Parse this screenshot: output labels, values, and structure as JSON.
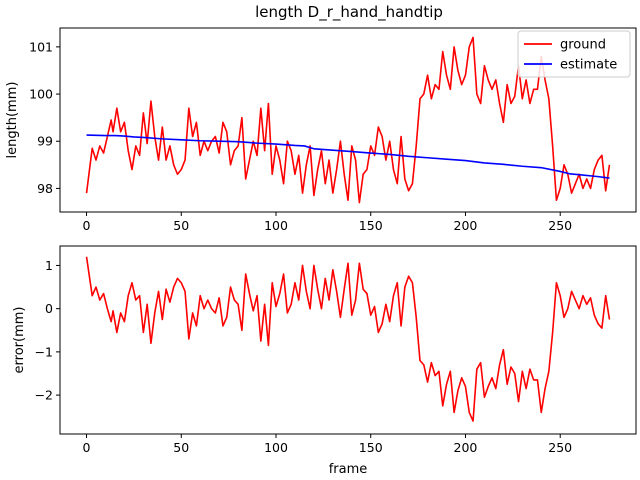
{
  "chart_data": [
    {
      "type": "line",
      "title": "length D_r_hand_handtip",
      "xlabel": "",
      "ylabel": "length(mm)",
      "xlim": [
        -14,
        290
      ],
      "ylim": [
        97.5,
        101.4
      ],
      "xticks": [
        0,
        50,
        100,
        150,
        200,
        250
      ],
      "yticks": [
        98,
        99,
        100,
        101
      ],
      "grid": false,
      "legend": "top-right",
      "series": [
        {
          "name": "ground",
          "color": "#ff0000",
          "x": [
            0,
            3,
            5,
            7,
            9,
            11,
            13,
            14,
            16,
            18,
            20,
            22,
            24,
            26,
            28,
            30,
            32,
            34,
            36,
            38,
            40,
            42,
            44,
            46,
            48,
            50,
            52,
            54,
            56,
            58,
            60,
            62,
            64,
            66,
            68,
            70,
            72,
            74,
            76,
            78,
            80,
            82,
            84,
            86,
            88,
            90,
            92,
            94,
            96,
            98,
            100,
            102,
            104,
            106,
            108,
            110,
            112,
            114,
            116,
            118,
            120,
            122,
            124,
            126,
            128,
            130,
            132,
            134,
            136,
            138,
            140,
            142,
            144,
            146,
            148,
            150,
            152,
            154,
            156,
            158,
            160,
            162,
            164,
            166,
            168,
            170,
            172,
            174,
            176,
            178,
            180,
            182,
            184,
            186,
            188,
            190,
            192,
            194,
            196,
            198,
            200,
            202,
            204,
            206,
            208,
            210,
            212,
            214,
            216,
            218,
            220,
            222,
            224,
            226,
            228,
            230,
            232,
            234,
            236,
            238,
            240,
            242,
            244,
            246,
            248,
            250,
            252,
            254,
            256,
            258,
            260,
            262,
            264,
            266,
            268,
            270,
            272,
            274,
            276
          ],
          "y": [
            97.9,
            98.85,
            98.6,
            98.9,
            98.75,
            99.1,
            99.45,
            99.2,
            99.7,
            99.2,
            99.4,
            98.8,
            98.4,
            98.9,
            98.7,
            99.6,
            98.95,
            99.85,
            99.1,
            98.6,
            99.3,
            98.6,
            98.9,
            98.5,
            98.3,
            98.4,
            98.6,
            99.7,
            99.1,
            99.4,
            98.7,
            99.0,
            98.8,
            99.0,
            99.1,
            98.75,
            99.4,
            99.2,
            98.5,
            98.8,
            98.9,
            99.5,
            98.2,
            98.6,
            99.0,
            98.7,
            99.7,
            98.8,
            99.8,
            98.3,
            98.9,
            98.6,
            98.1,
            99.0,
            98.8,
            98.3,
            98.7,
            97.9,
            98.5,
            98.9,
            97.85,
            98.4,
            98.8,
            98.1,
            98.6,
            97.9,
            98.4,
            99.0,
            98.3,
            97.75,
            98.9,
            98.6,
            97.7,
            98.3,
            98.4,
            98.9,
            98.7,
            99.3,
            99.1,
            98.6,
            99.0,
            98.4,
            98.1,
            99.1,
            98.2,
            97.95,
            98.1,
            98.9,
            99.9,
            100.0,
            100.4,
            99.9,
            100.2,
            100.1,
            100.9,
            100.4,
            100.1,
            101.0,
            100.5,
            100.2,
            100.4,
            101.0,
            101.2,
            100.0,
            99.8,
            100.6,
            100.3,
            100.1,
            100.3,
            99.8,
            99.4,
            100.2,
            99.8,
            99.95,
            100.6,
            99.9,
            100.3,
            99.8,
            100.1,
            100.1,
            100.8,
            100.3,
            99.9,
            98.9,
            97.75,
            98.0,
            98.5,
            98.3,
            97.9,
            98.1,
            98.3,
            98.0,
            98.2,
            98.0,
            98.4,
            98.6,
            98.7,
            97.95,
            98.5
          ],
          "x_start": 0
        },
        {
          "name": "estimate",
          "color": "#0000ff",
          "x": [
            0,
            10,
            15,
            20,
            25,
            30,
            40,
            50,
            60,
            70,
            80,
            90,
            100,
            110,
            115,
            120,
            130,
            140,
            150,
            160,
            170,
            180,
            190,
            200,
            210,
            220,
            230,
            240,
            250,
            255,
            260,
            270,
            276
          ],
          "y": [
            99.13,
            99.12,
            99.12,
            99.11,
            99.09,
            99.08,
            99.05,
            99.03,
            99.01,
            99.0,
            98.99,
            98.96,
            98.94,
            98.91,
            98.9,
            98.84,
            98.81,
            98.78,
            98.75,
            98.72,
            98.68,
            98.65,
            98.62,
            98.59,
            98.54,
            98.51,
            98.47,
            98.44,
            98.36,
            98.31,
            98.29,
            98.25,
            98.22
          ]
        }
      ]
    },
    {
      "type": "line",
      "title": "",
      "xlabel": "frame",
      "ylabel": "error(mm)",
      "xlim": [
        -14,
        290
      ],
      "ylim": [
        -2.9,
        1.45
      ],
      "xticks": [
        0,
        50,
        100,
        150,
        200,
        250
      ],
      "yticks": [
        -2,
        -1,
        0,
        1
      ],
      "grid": false,
      "series": [
        {
          "name": "",
          "color": "#ff0000",
          "x": [
            0,
            3,
            5,
            7,
            9,
            11,
            13,
            14,
            16,
            18,
            20,
            22,
            24,
            26,
            28,
            30,
            32,
            34,
            36,
            38,
            40,
            42,
            44,
            46,
            48,
            50,
            52,
            54,
            56,
            58,
            60,
            62,
            64,
            66,
            68,
            70,
            72,
            74,
            76,
            78,
            80,
            82,
            84,
            86,
            88,
            90,
            92,
            94,
            96,
            98,
            100,
            102,
            104,
            106,
            108,
            110,
            112,
            114,
            116,
            118,
            120,
            122,
            124,
            126,
            128,
            130,
            132,
            134,
            136,
            138,
            140,
            142,
            144,
            146,
            148,
            150,
            152,
            154,
            156,
            158,
            160,
            162,
            164,
            166,
            168,
            170,
            172,
            174,
            176,
            178,
            180,
            182,
            184,
            186,
            188,
            190,
            192,
            194,
            196,
            198,
            200,
            202,
            204,
            206,
            208,
            210,
            212,
            214,
            216,
            218,
            220,
            222,
            224,
            226,
            228,
            230,
            232,
            234,
            236,
            238,
            240,
            242,
            244,
            246,
            248,
            250,
            252,
            254,
            256,
            258,
            260,
            262,
            264,
            266,
            268,
            270,
            272,
            274,
            276
          ],
          "y": [
            1.2,
            0.3,
            0.5,
            0.2,
            0.35,
            0.0,
            -0.3,
            -0.05,
            -0.55,
            -0.1,
            -0.3,
            0.3,
            0.6,
            0.2,
            0.3,
            -0.55,
            0.1,
            -0.8,
            -0.1,
            0.4,
            -0.25,
            0.45,
            0.15,
            0.5,
            0.7,
            0.6,
            0.4,
            -0.7,
            -0.1,
            -0.4,
            0.3,
            0.0,
            0.2,
            0.0,
            -0.1,
            0.25,
            -0.4,
            -0.2,
            0.5,
            0.2,
            0.1,
            -0.5,
            0.8,
            0.35,
            -0.05,
            0.3,
            -0.75,
            0.1,
            -0.85,
            0.6,
            0.05,
            0.35,
            0.8,
            -0.1,
            0.1,
            0.6,
            0.2,
            1.0,
            0.4,
            0.0,
            1.0,
            0.45,
            0.0,
            0.7,
            0.2,
            0.9,
            0.4,
            -0.2,
            0.45,
            1.05,
            -0.15,
            0.2,
            1.05,
            0.45,
            0.35,
            -0.15,
            0.05,
            -0.55,
            -0.35,
            0.1,
            -0.3,
            0.3,
            0.6,
            -0.4,
            0.5,
            0.75,
            0.6,
            -0.2,
            -1.2,
            -1.3,
            -1.7,
            -1.25,
            -1.55,
            -1.45,
            -2.25,
            -1.75,
            -1.45,
            -2.4,
            -1.9,
            -1.6,
            -1.8,
            -2.4,
            -2.6,
            -1.4,
            -1.25,
            -2.05,
            -1.8,
            -1.6,
            -1.85,
            -1.3,
            -0.95,
            -1.75,
            -1.35,
            -1.5,
            -2.15,
            -1.45,
            -1.85,
            -1.4,
            -1.65,
            -1.65,
            -2.4,
            -1.85,
            -1.45,
            -0.55,
            0.6,
            0.3,
            -0.2,
            0.0,
            0.4,
            0.2,
            0.0,
            0.3,
            0.1,
            0.25,
            -0.15,
            -0.35,
            -0.45,
            0.3,
            -0.25
          ]
        }
      ]
    }
  ]
}
